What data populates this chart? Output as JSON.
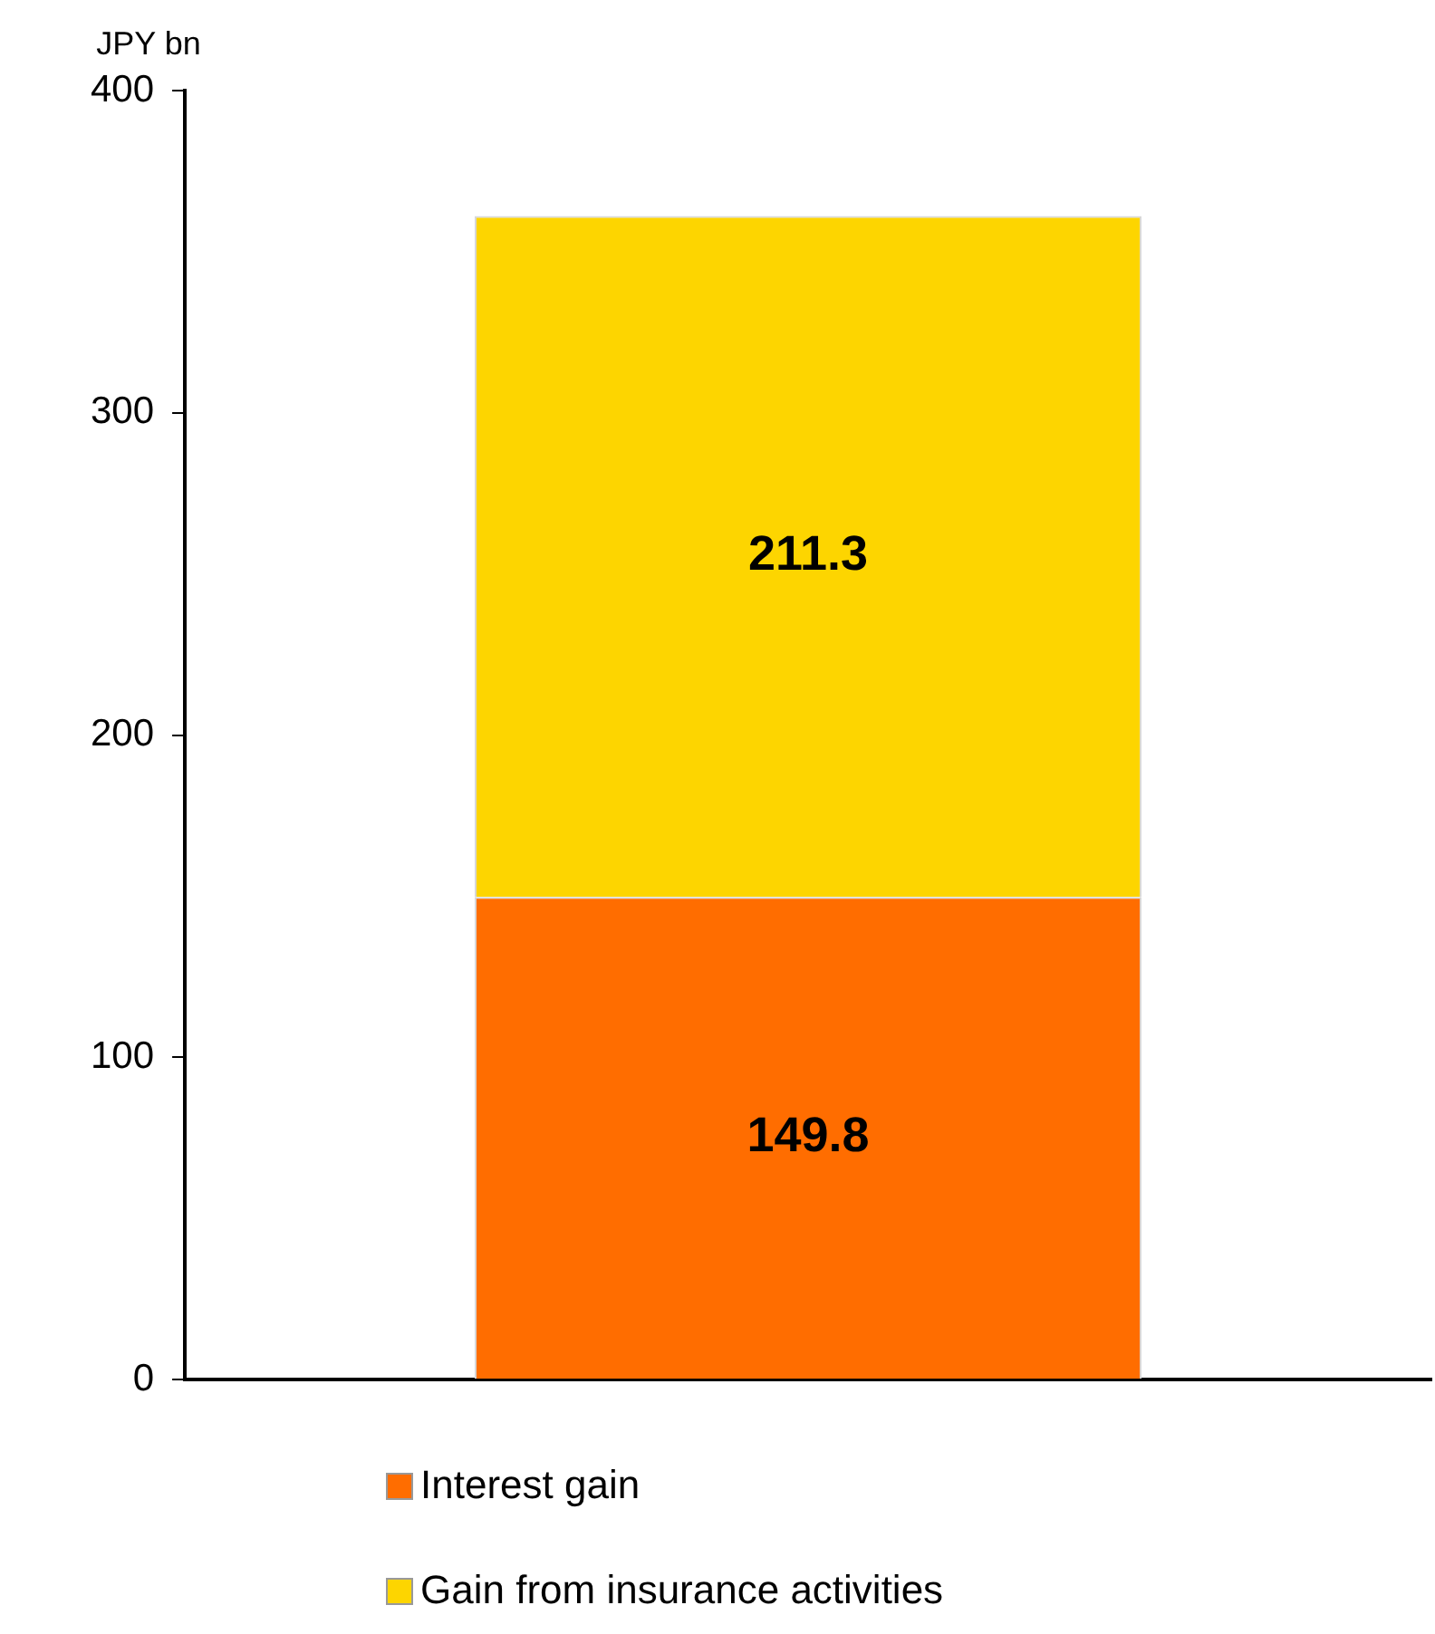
{
  "chart_data": {
    "type": "bar",
    "ylabel": "JPY bn",
    "stacked": true,
    "categories": [
      null
    ],
    "series": [
      {
        "name": "Interest gain",
        "color": "#ff6d00",
        "values": [
          149.8
        ]
      },
      {
        "name": "Gain from insurance activities",
        "color": "#fdd500",
        "values": [
          211.3
        ]
      }
    ],
    "ylim": [
      0,
      400
    ],
    "yticks": [
      0,
      100,
      200,
      300,
      400
    ],
    "grid": false,
    "legend": "bottom",
    "data_labels": true
  }
}
